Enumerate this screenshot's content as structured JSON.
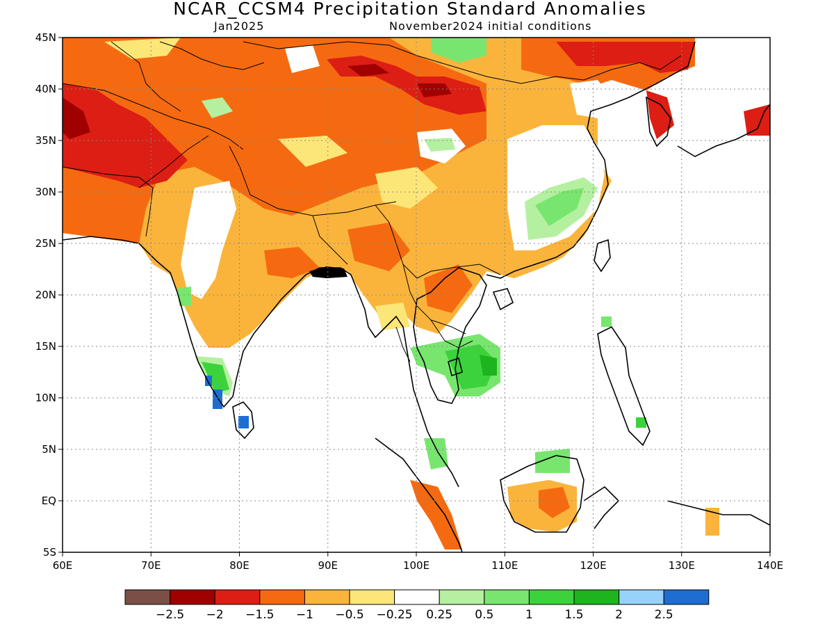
{
  "title": "NCAR_CCSM4 Precipitation Standard Anomalies",
  "subtitle_left": "Jan2025",
  "subtitle_right": "November2024 initial conditions",
  "axes": {
    "lat_labels": [
      "45N",
      "40N",
      "35N",
      "30N",
      "25N",
      "20N",
      "15N",
      "10N",
      "5N",
      "EQ",
      "5S"
    ],
    "lon_labels": [
      "60E",
      "70E",
      "80E",
      "90E",
      "100E",
      "110E",
      "120E",
      "130E",
      "140E"
    ],
    "lat_range": [
      -5,
      45
    ],
    "lon_range": [
      60,
      140
    ]
  },
  "colorbar": {
    "colors": [
      "#7a5046",
      "#a00000",
      "#dc1e14",
      "#f56a10",
      "#fab43c",
      "#fde678",
      "#ffffff",
      "#b4f0a0",
      "#78e66e",
      "#3cd23c",
      "#1eb41e",
      "#96d2fa",
      "#1e6ed2"
    ],
    "labels": [
      "−2.5",
      "−2",
      "−1.5",
      "−1",
      "−0.5",
      "−0.25",
      "0.25",
      "0.5",
      "1",
      "1.5",
      "2",
      "2.5"
    ]
  },
  "colors": {
    "strong_dry": "#a00000",
    "dry": "#dc1e14",
    "moderate_dry": "#f56a10",
    "mild_dry": "#fab43c",
    "slight_dry": "#fde678",
    "neutral": "#ffffff",
    "slight_wet": "#b4f0a0",
    "wet": "#78e66e",
    "moderate_wet": "#3cd23c",
    "strong_wet": "#1eb41e",
    "very_wet": "#1e6ed2"
  }
}
